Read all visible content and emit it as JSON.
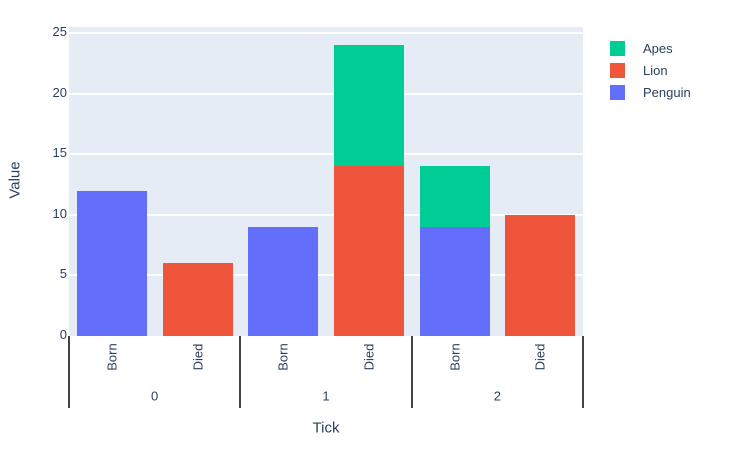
{
  "style": {
    "plot_bg": "#E5ECF6",
    "grid_color": "#FFFFFF",
    "text_color": "#2A3F5F",
    "divider_color": "#444444",
    "page_bg": "#FFFFFF"
  },
  "legend": {
    "items": [
      {
        "label": "Apes",
        "color": "#00CC96"
      },
      {
        "label": "Lion",
        "color": "#EF553B"
      },
      {
        "label": "Penguin",
        "color": "#636EFA"
      }
    ]
  },
  "chart_data": {
    "type": "bar",
    "mode": "stacked",
    "title": "",
    "xlabel": "Tick",
    "ylabel": "Value",
    "ylim": [
      0,
      25.5
    ],
    "yticks": [
      0,
      5,
      10,
      15,
      20,
      25
    ],
    "grid": true,
    "legend_position": "outside-top-right",
    "groups": [
      "0",
      "1",
      "2"
    ],
    "subcategories": [
      "Born",
      "Died"
    ],
    "series": [
      {
        "name": "Apes",
        "color": "#00CC96"
      },
      {
        "name": "Lion",
        "color": "#EF553B"
      },
      {
        "name": "Penguin",
        "color": "#636EFA"
      }
    ],
    "bars": [
      {
        "group": "0",
        "sub": "Born",
        "segments": [
          {
            "series": "Penguin",
            "value": 12
          }
        ]
      },
      {
        "group": "0",
        "sub": "Died",
        "segments": [
          {
            "series": "Lion",
            "value": 6
          }
        ]
      },
      {
        "group": "1",
        "sub": "Born",
        "segments": [
          {
            "series": "Penguin",
            "value": 9
          }
        ]
      },
      {
        "group": "1",
        "sub": "Died",
        "segments": [
          {
            "series": "Lion",
            "value": 14
          },
          {
            "series": "Apes",
            "value": 10
          }
        ]
      },
      {
        "group": "2",
        "sub": "Born",
        "segments": [
          {
            "series": "Penguin",
            "value": 9
          },
          {
            "series": "Apes",
            "value": 5
          }
        ]
      },
      {
        "group": "2",
        "sub": "Died",
        "segments": [
          {
            "series": "Lion",
            "value": 10
          }
        ]
      }
    ]
  }
}
